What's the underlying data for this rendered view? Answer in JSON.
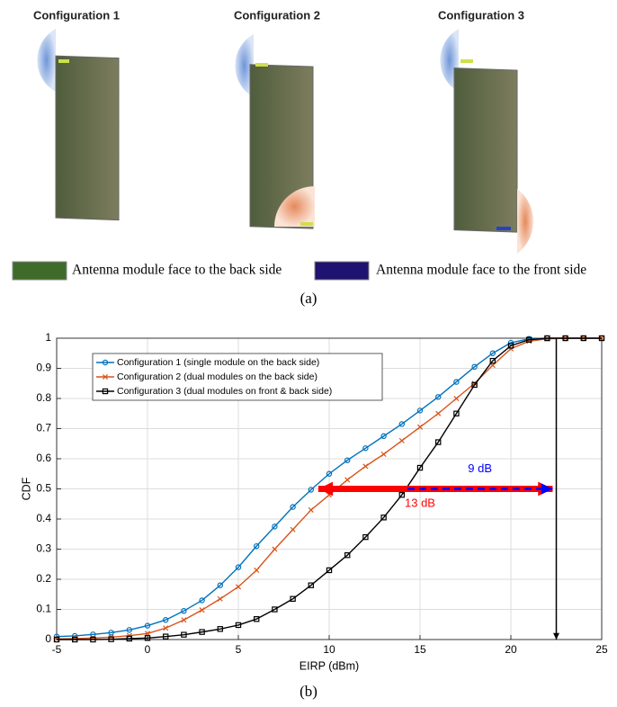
{
  "figure_a": {
    "labels": [
      "Configuration 1",
      "Configuration 2",
      "Configuration 3"
    ],
    "legend": [
      {
        "text": "Antenna module face to the back side",
        "color": "#3e6b2a"
      },
      {
        "text": "Antenna module face to the front side",
        "color": "#1f1270"
      }
    ],
    "caption": "(a)"
  },
  "caption_b": "(b)",
  "chart_data": {
    "type": "line",
    "x": [
      -5,
      -4,
      -3,
      -2,
      -1,
      0,
      1,
      2,
      3,
      4,
      5,
      6,
      7,
      8,
      9,
      10,
      11,
      12,
      13,
      14,
      15,
      16,
      17,
      18,
      19,
      20,
      21,
      22,
      23,
      24,
      25
    ],
    "series": [
      {
        "name": "Configuration 1 (single module on the back side)",
        "color": "#0072bd",
        "marker": "circle",
        "values": [
          0.01,
          0.012,
          0.017,
          0.023,
          0.032,
          0.046,
          0.065,
          0.095,
          0.13,
          0.18,
          0.24,
          0.31,
          0.375,
          0.44,
          0.497,
          0.55,
          0.595,
          0.635,
          0.675,
          0.715,
          0.76,
          0.805,
          0.855,
          0.905,
          0.95,
          0.985,
          0.998,
          1,
          1,
          1,
          1
        ]
      },
      {
        "name": "Configuration 2 (dual modules on the back side)",
        "color": "#d95319",
        "marker": "x",
        "values": [
          0.002,
          0.003,
          0.005,
          0.008,
          0.013,
          0.02,
          0.038,
          0.065,
          0.098,
          0.135,
          0.175,
          0.23,
          0.3,
          0.365,
          0.43,
          0.48,
          0.53,
          0.575,
          0.615,
          0.66,
          0.705,
          0.75,
          0.8,
          0.85,
          0.91,
          0.965,
          0.99,
          0.998,
          1,
          1,
          1
        ]
      },
      {
        "name": "Configuration 3 (dual modules on front & back  side)",
        "color": "#000000",
        "marker": "square",
        "values": [
          0,
          0,
          0,
          0.001,
          0.003,
          0.005,
          0.01,
          0.016,
          0.025,
          0.035,
          0.048,
          0.068,
          0.1,
          0.135,
          0.18,
          0.23,
          0.28,
          0.34,
          0.405,
          0.48,
          0.57,
          0.655,
          0.75,
          0.845,
          0.925,
          0.975,
          0.995,
          1,
          1,
          1,
          1
        ]
      }
    ],
    "xlabel": "EIRP (dBm)",
    "ylabel": "CDF",
    "xlim": [
      -5,
      25
    ],
    "ylim": [
      0,
      1
    ],
    "xticks": [
      -5,
      0,
      5,
      10,
      15,
      20,
      25
    ],
    "yticks": [
      0,
      0.1,
      0.2,
      0.3,
      0.4,
      0.5,
      0.6,
      0.7,
      0.8,
      0.9,
      1
    ],
    "grid": true,
    "legend": "upper left",
    "arrows": [
      {
        "x1": 22.3,
        "y1": 0.5,
        "x2": 9.4,
        "y2": 0.5,
        "color": "#ff0000",
        "both": true,
        "dashed": false
      },
      {
        "x1": 14.3,
        "y1": 0.5,
        "x2": 22.3,
        "y2": 0.5,
        "color": "#0000ff",
        "both": false,
        "dashed": true
      },
      {
        "x1": 22.5,
        "y1": 1,
        "x2": 22.5,
        "y2": 0,
        "color": "#000000",
        "both": false,
        "dashed": false
      }
    ],
    "annotations": [
      {
        "text": "9 dB",
        "x": 18.3,
        "y": 0.565,
        "color": "#0000ff"
      },
      {
        "text": "13 dB",
        "x": 15,
        "y": 0.45,
        "color": "#ff0000"
      }
    ]
  }
}
